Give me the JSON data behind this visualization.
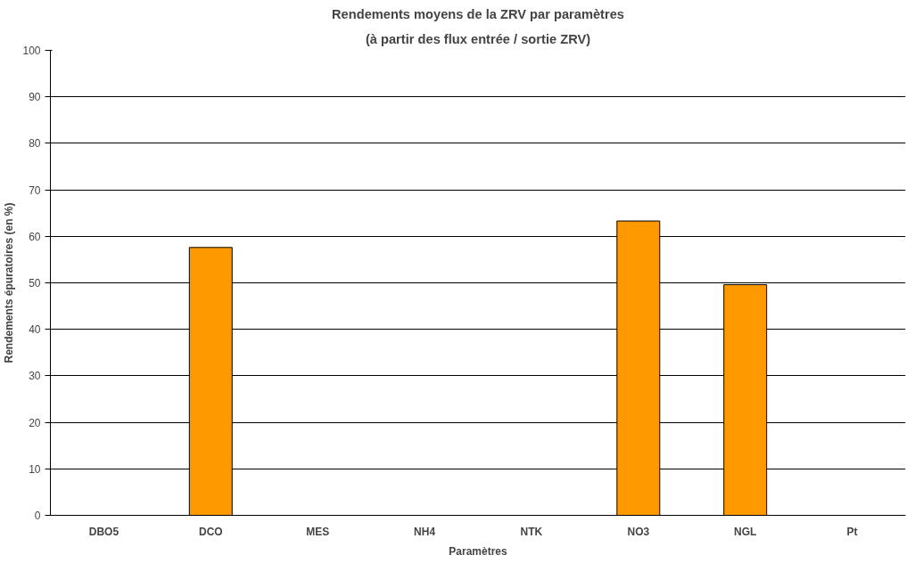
{
  "chart_data": {
    "type": "bar",
    "title": "Rendements moyens de la ZRV par paramètres",
    "subtitle": "(à partir des flux entrée / sortie ZRV)",
    "xlabel": "Paramètres",
    "ylabel": "Rendements épuratoires (en %)",
    "categories": [
      "DBO5",
      "DCO",
      "MES",
      "NH4",
      "NTK",
      "NO3",
      "NGL",
      "Pt"
    ],
    "values": [
      null,
      57.6,
      null,
      null,
      null,
      63.3,
      49.6,
      null
    ],
    "color": "#ff9900",
    "ylim": [
      0,
      100
    ],
    "yticks": [
      0,
      10,
      20,
      30,
      40,
      50,
      60,
      70,
      80,
      90,
      100
    ],
    "grid": "y"
  }
}
